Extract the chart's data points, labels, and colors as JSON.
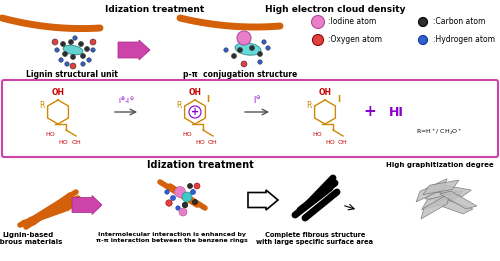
{
  "bg_color": "#ffffff",
  "top_label1": "Idization treatment",
  "top_label2": "High electron cloud density",
  "bottom_label1": "Lignin structural unit",
  "bottom_label2": "p-π  conjugation structure",
  "legend": [
    {
      "label": ":Iodine atom",
      "color": "#e87ec7"
    },
    {
      "label": ":Carbon atom",
      "color": "#2e2e2e"
    },
    {
      "label": ":Oxygen atom",
      "color": "#e04040"
    },
    {
      "label": ":Hydrogen atom",
      "color": "#3060d0"
    }
  ],
  "reaction_box_color": "#cc44aa",
  "chem_color": "#cc8800",
  "red_col": "#cc0000",
  "purple_col": "#8800cc",
  "orange_col": "#d4600a",
  "magenta_col": "#cc44aa",
  "bottom_section_label1": "Idization treatment",
  "bottom_section_label2": "Lignin-based\nfibrous materials",
  "bottom_section_label3": "Intermolecular interaction is enhanced by\nπ-π interaction between the benzene rings",
  "bottom_section_label4": "Complete fibrous structure\nwith large specific surface area",
  "bottom_section_label5": "High graphitization degree"
}
